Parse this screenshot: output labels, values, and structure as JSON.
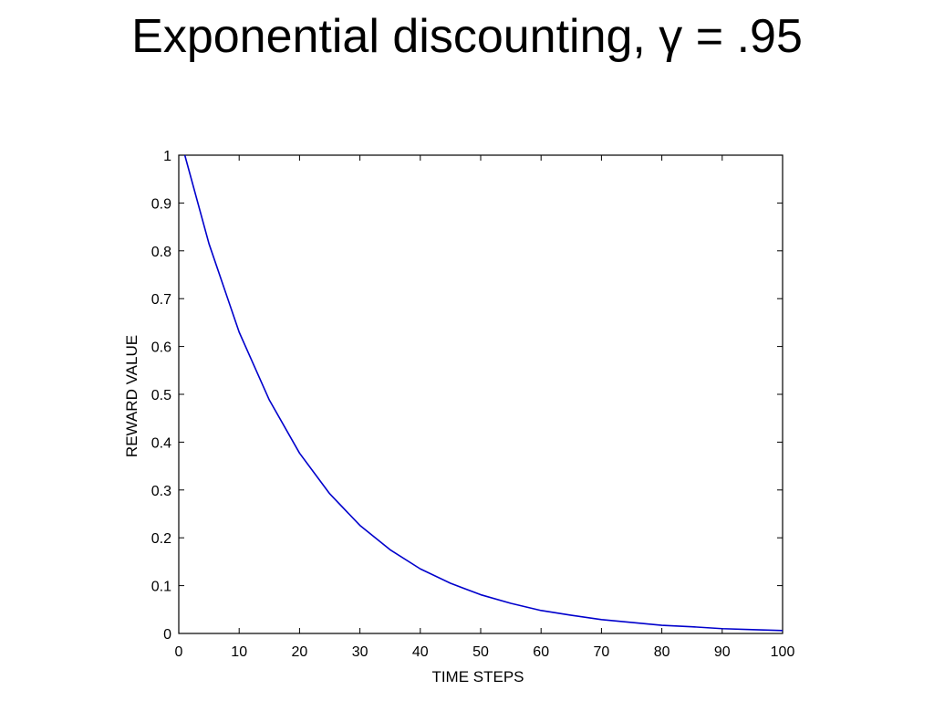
{
  "title": "Exponential discounting, γ = .95",
  "chart_data": {
    "type": "line",
    "title": "Exponential discounting, γ = .95",
    "xlabel": "TIME STEPS",
    "ylabel": "REWARD VALUE",
    "xlim": [
      0,
      100
    ],
    "ylim": [
      0,
      1
    ],
    "xticks": [
      0,
      10,
      20,
      30,
      40,
      50,
      60,
      70,
      80,
      90,
      100
    ],
    "yticks": [
      0,
      0.1,
      0.2,
      0.3,
      0.4,
      0.5,
      0.6,
      0.7,
      0.8,
      0.9,
      1
    ],
    "xtick_labels": [
      "0",
      "10",
      "20",
      "30",
      "40",
      "50",
      "60",
      "70",
      "80",
      "90",
      "100"
    ],
    "ytick_labels": [
      "0",
      "0.1",
      "0.2",
      "0.3",
      "0.4",
      "0.5",
      "0.6",
      "0.7",
      "0.8",
      "0.9",
      "1"
    ],
    "grid": false,
    "series": [
      {
        "color": "#0000cc",
        "x": [
          1,
          5,
          10,
          15,
          20,
          25,
          30,
          35,
          40,
          45,
          50,
          55,
          60,
          65,
          70,
          75,
          80,
          85,
          90,
          95,
          100
        ],
        "y": [
          1.0,
          0.815,
          0.63,
          0.488,
          0.377,
          0.292,
          0.226,
          0.175,
          0.135,
          0.105,
          0.081,
          0.063,
          0.048,
          0.038,
          0.029,
          0.023,
          0.017,
          0.014,
          0.01,
          0.008,
          0.006
        ]
      }
    ]
  }
}
